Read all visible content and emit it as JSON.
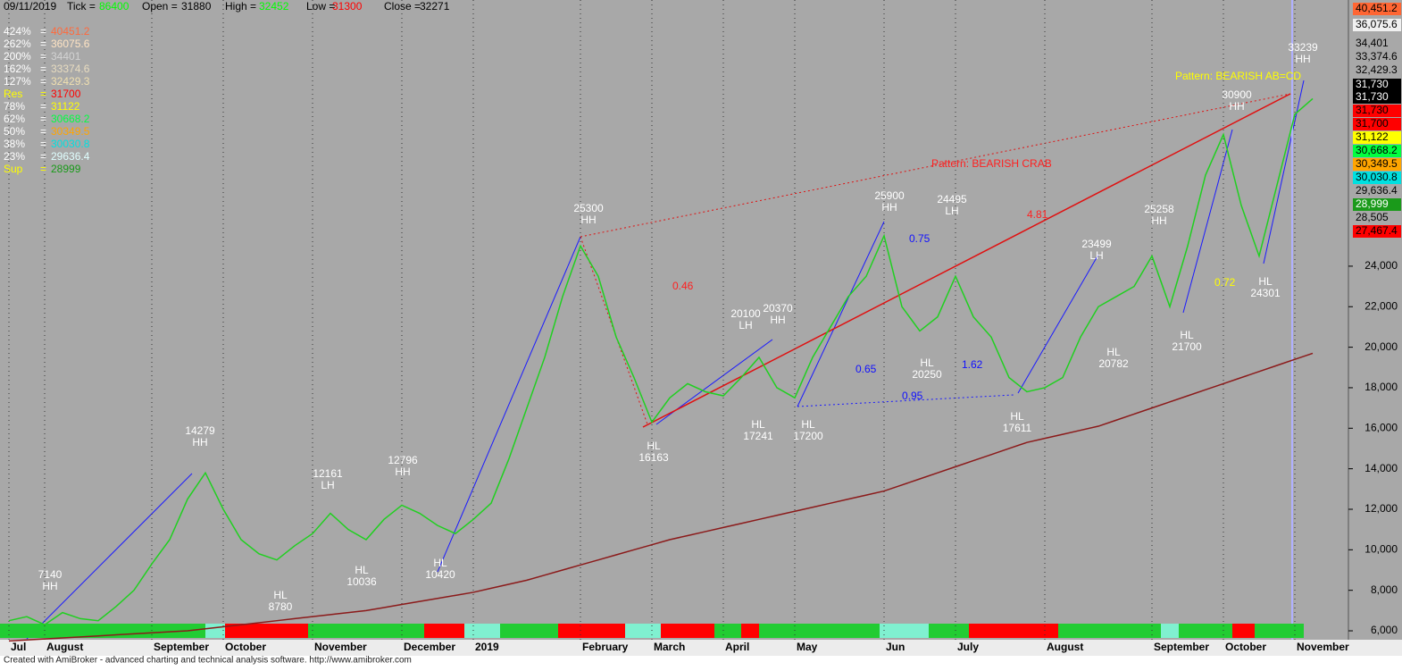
{
  "header": {
    "date": "09/11/2019",
    "fields": [
      {
        "label": "Tick =",
        "value": "86400",
        "color": "#00ff00"
      },
      {
        "label": "Open =",
        "value": "31880",
        "color": "#000000"
      },
      {
        "label": "High =",
        "value": "32452",
        "color": "#00ff00"
      },
      {
        "label": "Low =",
        "value": "31300",
        "color": "#ff0000"
      },
      {
        "label": "Close =",
        "value": "32271",
        "color": "#000000"
      }
    ]
  },
  "levels": {
    "separator": "=",
    "rows": [
      {
        "label": "424%",
        "value": "40451.2",
        "label_color": "#ffffff",
        "color": "#ff6a3d"
      },
      {
        "label": "262%",
        "value": "36075.6",
        "label_color": "#ffffff",
        "color": "#ffe4c4"
      },
      {
        "label": "200%",
        "value": "34401",
        "label_color": "#ffffff",
        "color": "#d3d3d3"
      },
      {
        "label": "162%",
        "value": "33374.6",
        "label_color": "#ffffff",
        "color": "#e8dcc0"
      },
      {
        "label": "127%",
        "value": "32429.3",
        "label_color": "#ffffff",
        "color": "#f0e0b0"
      },
      {
        "label": "Res",
        "value": "31700",
        "label_color": "#ffff00",
        "color": "#ff0000"
      },
      {
        "label": "78%",
        "value": "31122",
        "label_color": "#ffffff",
        "color": "#ffff00"
      },
      {
        "label": "62%",
        "value": "30668.2",
        "label_color": "#ffffff",
        "color": "#00ff40"
      },
      {
        "label": "50%",
        "value": "30349.5",
        "label_color": "#ffffff",
        "color": "#ffa500"
      },
      {
        "label": "38%",
        "value": "30030.8",
        "label_color": "#ffffff",
        "color": "#00e0e0"
      },
      {
        "label": "23%",
        "value": "29636.4",
        "label_color": "#ffffff",
        "color": "#e0ffff"
      },
      {
        "label": "Sup",
        "value": "28999",
        "label_color": "#ffff00",
        "color": "#1a9a1a"
      }
    ]
  },
  "price_boxes": [
    {
      "label": "40,451.2",
      "background": "#ff6633",
      "color": "#000000"
    },
    {
      "label": "36,075.6",
      "background": "#f0f0f0",
      "color": "#000000"
    },
    {
      "label": "34,401",
      "background": null,
      "color": "#000000"
    },
    {
      "label": "33,374.6",
      "background": null,
      "color": "#000000"
    },
    {
      "label": "32,429.3",
      "background": null,
      "color": "#000000"
    },
    {
      "label": "31,730",
      "background": "#000000",
      "color": "#ffffff"
    },
    {
      "label": "31,730",
      "background": "#000000",
      "color": "#ffffff"
    },
    {
      "label": "31,730",
      "background": "#ff0000",
      "color": "#000000"
    },
    {
      "label": "31,700",
      "background": "#ff0000",
      "color": "#000000"
    },
    {
      "label": "31,122",
      "background": "#ffff00",
      "color": "#000000"
    },
    {
      "label": "30,668.2",
      "background": "#00ff40",
      "color": "#000000"
    },
    {
      "label": "30,349.5",
      "background": "#ffa500",
      "color": "#000000"
    },
    {
      "label": "30,030.8",
      "background": "#00e0e0",
      "color": "#000000"
    },
    {
      "label": "29,636.4",
      "background": null,
      "color": "#000000"
    },
    {
      "label": "28,999",
      "background": "#1a9a1a",
      "color": "#ffffff"
    },
    {
      "label": "28,505",
      "background": null,
      "color": "#000000"
    },
    {
      "label": "27,467.4",
      "background": "#ff0000",
      "color": "#000000"
    }
  ],
  "chart_data": {
    "type": "line",
    "categories": [
      "Jul",
      null,
      "August",
      null,
      null,
      null,
      null,
      null,
      "September",
      null,
      null,
      null,
      "October",
      null,
      null,
      null,
      null,
      "November",
      null,
      null,
      null,
      null,
      "December",
      null,
      null,
      null,
      "2019",
      null,
      null,
      null,
      null,
      null,
      "February",
      null,
      null,
      null,
      "March",
      null,
      null,
      null,
      "April",
      null,
      null,
      null,
      "May",
      null,
      null,
      null,
      null,
      "Jun",
      null,
      null,
      null,
      "July",
      null,
      null,
      null,
      null,
      "August",
      null,
      null,
      null,
      null,
      null,
      "September",
      null,
      null,
      null,
      "October",
      null,
      null,
      null,
      "November",
      null
    ],
    "series": [
      {
        "color": "#20d020",
        "values": [
          6500,
          6700,
          6300,
          6900,
          6600,
          6500,
          7200,
          8000,
          9300,
          10500,
          12500,
          13800,
          12000,
          10500,
          9800,
          9500,
          10200,
          10800,
          11800,
          11000,
          10500,
          11500,
          12200,
          11800,
          11200,
          10800,
          11500,
          12300,
          14500,
          17000,
          19500,
          22500,
          25000,
          23500,
          20500,
          18500,
          16300,
          17500,
          18200,
          17800,
          17600,
          18500,
          19500,
          18000,
          17500,
          19500,
          21000,
          22500,
          23500,
          25500,
          22000,
          20800,
          21500,
          23500,
          21500,
          20500,
          18500,
          17800,
          18000,
          18500,
          20500,
          22000,
          22500,
          23000,
          24500,
          22000,
          25000,
          28500,
          30500,
          27000,
          24500,
          28000,
          31500,
          32271
        ]
      },
      {
        "color": "#8b1a1a",
        "values": [
          5500,
          5550,
          5600,
          5650,
          5700,
          5750,
          5800,
          5850,
          5900,
          5950,
          6000,
          6100,
          6200,
          6300,
          6400,
          6500,
          6600,
          6700,
          6800,
          6900,
          7000,
          7150,
          7300,
          7450,
          7600,
          7750,
          7900,
          8100,
          8300,
          8500,
          8750,
          9000,
          9250,
          9500,
          9750,
          10000,
          10250,
          10500,
          10700,
          10900,
          11100,
          11300,
          11500,
          11700,
          11900,
          12100,
          12300,
          12500,
          12700,
          12900,
          13200,
          13500,
          13800,
          14100,
          14400,
          14700,
          15000,
          15300,
          15500,
          15700,
          15900,
          16100,
          16400,
          16700,
          17000,
          17300,
          17600,
          17900,
          18200,
          18500,
          18800,
          19100,
          19400,
          19700
        ]
      }
    ],
    "ylim": [
      5560,
      37140
    ],
    "yticks": [
      {
        "value": 6000,
        "label": "6,000"
      },
      {
        "value": 8000,
        "label": "8,000"
      },
      {
        "value": 10000,
        "label": "10,000"
      },
      {
        "value": 12000,
        "label": "12,000"
      },
      {
        "value": 14000,
        "label": "14,000"
      },
      {
        "value": 16000,
        "label": "16,000"
      },
      {
        "value": 18000,
        "label": "18,000"
      },
      {
        "value": 20000,
        "label": "20,000"
      },
      {
        "value": 22000,
        "label": "22,000"
      },
      {
        "value": 24000,
        "label": "24,000"
      }
    ],
    "grid": true
  },
  "annotations": [
    {
      "top": "7140",
      "bottom": "HH"
    },
    {
      "top": "14279",
      "bottom": "HH"
    },
    {
      "top": "12161",
      "bottom": "LH"
    },
    {
      "top": "12796",
      "bottom": "HH"
    },
    {
      "top": "HL",
      "bottom": "8780"
    },
    {
      "top": "HL",
      "bottom": "10036"
    },
    {
      "top": "HL",
      "bottom": "10420"
    },
    {
      "top": "25300",
      "bottom": "HH"
    },
    {
      "top": "HL",
      "bottom": "16163"
    },
    {
      "top": "20100",
      "bottom": "LH"
    },
    {
      "top": "20370",
      "bottom": "HH"
    },
    {
      "top": "HL",
      "bottom": "17241"
    },
    {
      "top": "HL",
      "bottom": "17200"
    },
    {
      "top": "25900",
      "bottom": "HH"
    },
    {
      "top": "24495",
      "bottom": "LH"
    },
    {
      "top": "HL",
      "bottom": "20250"
    },
    {
      "top": "HL",
      "bottom": "17611"
    },
    {
      "top": "23499",
      "bottom": "LH"
    },
    {
      "top": "25258",
      "bottom": "HH"
    },
    {
      "top": "HL",
      "bottom": "20782"
    },
    {
      "top": "HL",
      "bottom": "21700"
    },
    {
      "top": "30900",
      "bottom": "HH"
    },
    {
      "top": "33239",
      "bottom": "HH"
    },
    {
      "top": "HL",
      "bottom": "24301"
    }
  ],
  "patterns": [
    {
      "text": "Pattern: BEARISH CRAB",
      "color": "#ff2020"
    },
    {
      "text": "Pattern: BEARISH AB=CD",
      "color": "#ffff00"
    }
  ],
  "ratios": [
    {
      "text": "0.46",
      "color": "#ff2020"
    },
    {
      "text": "4.81",
      "color": "#ff2020"
    },
    {
      "text": "0.75",
      "color": "#1010ff"
    },
    {
      "text": "0.65",
      "color": "#1010ff"
    },
    {
      "text": "1.62",
      "color": "#1010ff"
    },
    {
      "text": "0.95",
      "color": "#1010ff"
    },
    {
      "text": "0.72",
      "color": "#ffff00"
    }
  ],
  "footer": "Created with AmiBroker - advanced charting and technical analysis software. http://www.amibroker.com"
}
